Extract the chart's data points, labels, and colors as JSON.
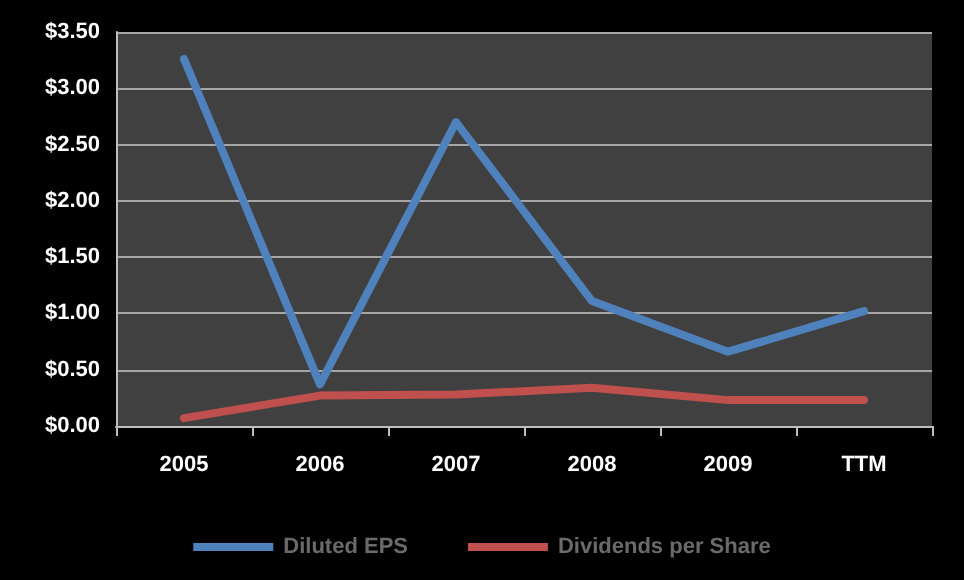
{
  "chart_data": {
    "type": "line",
    "categories": [
      "2005",
      "2006",
      "2007",
      "2008",
      "2009",
      "TTM"
    ],
    "series": [
      {
        "name": "Diluted EPS",
        "color": "#4f81bd",
        "values": [
          3.26,
          0.37,
          2.7,
          1.11,
          0.66,
          1.02
        ]
      },
      {
        "name": "Dividends per Share",
        "color": "#c0504d",
        "values": [
          0.07,
          0.27,
          0.28,
          0.34,
          0.23,
          0.23
        ]
      }
    ],
    "ylim": [
      0,
      3.5
    ],
    "yticks": [
      {
        "value": 0,
        "label": "$0.00"
      },
      {
        "value": 0.5,
        "label": "$0.50"
      },
      {
        "value": 1,
        "label": "$1.00"
      },
      {
        "value": 1.5,
        "label": "$1.50"
      },
      {
        "value": 2,
        "label": "$2.00"
      },
      {
        "value": 2.5,
        "label": "$2.50"
      },
      {
        "value": 3,
        "label": "$3.00"
      },
      {
        "value": 3.5,
        "label": "$3.50"
      }
    ],
    "grid": "y",
    "legend": "bottom",
    "marker": "none",
    "line_style": "solid"
  }
}
